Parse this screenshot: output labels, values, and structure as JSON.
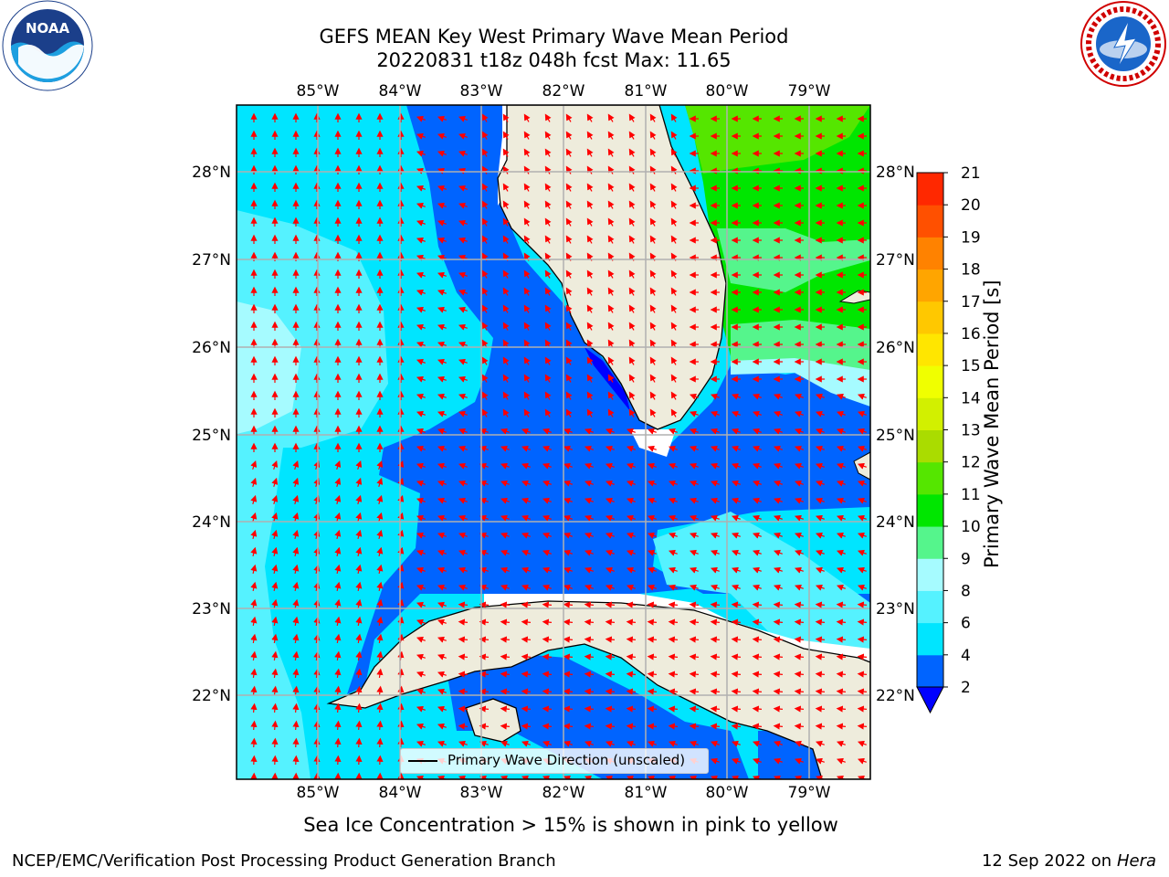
{
  "title_line1": "GEFS MEAN Key West Primary Wave Mean Period",
  "title_line2": "20220831 t18z 048h fcst   Max: 11.65",
  "caption": "Sea Ice Concentration > 15% is shown in pink to yellow",
  "footer_left": "NCEP/EMC/Verification Post Processing Product Generation Branch",
  "footer_right_date": "12 Sep 2022 on",
  "footer_right_host": "Hera",
  "legend_label": "Primary Wave Direction (unscaled)",
  "colorbar": {
    "label": "Primary Wave Mean Period [s]",
    "ticks": [
      "2",
      "4",
      "6",
      "8",
      "9",
      "10",
      "11",
      "12",
      "13",
      "14",
      "15",
      "16",
      "17",
      "18",
      "19",
      "20",
      "21"
    ],
    "colors": [
      "#0064ff",
      "#00e5ff",
      "#55f2ff",
      "#a6fbff",
      "#55f58c",
      "#00e600",
      "#55e600",
      "#aadc00",
      "#d2f000",
      "#f0ff00",
      "#ffe600",
      "#ffc800",
      "#ffa500",
      "#ff8200",
      "#ff5000",
      "#ff2800"
    ],
    "extend_color": "#0000ff"
  },
  "lon_labels": [
    "85°W",
    "84°W",
    "83°W",
    "82°W",
    "81°W",
    "80°W",
    "79°W"
  ],
  "lat_labels": [
    "28°N",
    "27°N",
    "26°N",
    "25°N",
    "24°N",
    "23°N",
    "22°N"
  ],
  "logos": {
    "noaa": {
      "icon": "noaa-logo",
      "text": "NOAA"
    },
    "nws": {
      "icon": "nws-logo"
    }
  },
  "colors": {
    "land": "#eeecdc",
    "wave_low": "#0064ff",
    "wave_mid": "#00e5ff",
    "wave_light": "#55f2ff",
    "wave_green": "#00e600",
    "arrow": "#ff0000",
    "grid": "#b0b0b0"
  }
}
